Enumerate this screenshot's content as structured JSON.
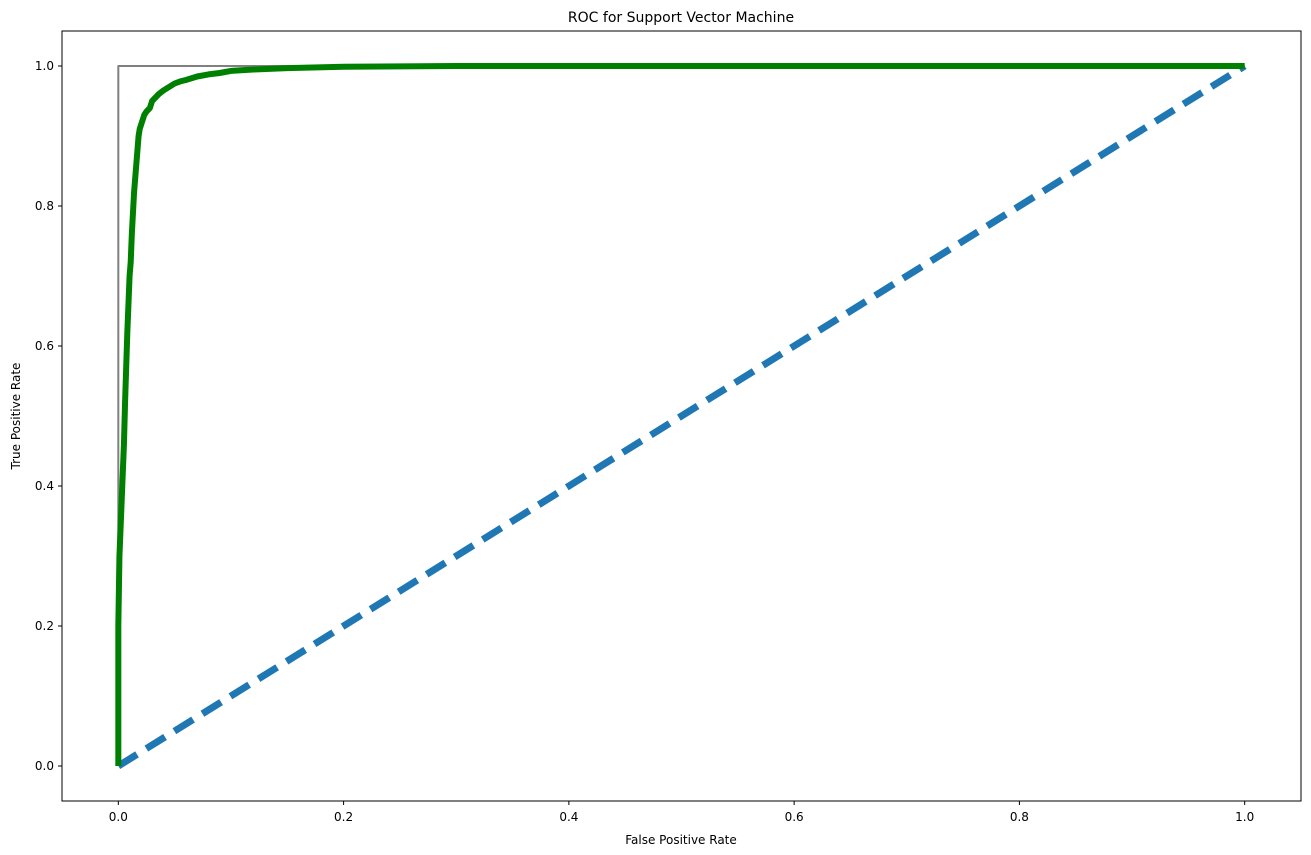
{
  "chart_data": {
    "type": "line",
    "title": "ROC for Support Vector Machine",
    "xlabel": "False Positive Rate",
    "ylabel": "True Positive Rate",
    "xlim": [
      -0.05,
      1.05
    ],
    "ylim": [
      -0.05,
      1.05
    ],
    "xticks": [
      0.0,
      0.2,
      0.4,
      0.6,
      0.8,
      1.0
    ],
    "xtick_labels": [
      "0.0",
      "0.2",
      "0.4",
      "0.6",
      "0.8",
      "1.0"
    ],
    "yticks": [
      0.0,
      0.2,
      0.4,
      0.6,
      0.8,
      1.0
    ],
    "ytick_labels": [
      "0.0",
      "0.2",
      "0.4",
      "0.6",
      "0.8",
      "1.0"
    ],
    "grid": false,
    "legend": false,
    "series": [
      {
        "color": "#808080",
        "style": "solid",
        "x": [
          0.0,
          0.0,
          1.0
        ],
        "y": [
          0.0,
          1.0,
          1.0
        ]
      },
      {
        "color": "#1f77b4",
        "style": "dashed",
        "x": [
          0.0,
          1.0
        ],
        "y": [
          0.0,
          1.0
        ]
      },
      {
        "color": "#008000",
        "style": "solid",
        "x": [
          0.0,
          0.0,
          0.001,
          0.002,
          0.003,
          0.004,
          0.005,
          0.006,
          0.007,
          0.008,
          0.009,
          0.01,
          0.011,
          0.012,
          0.014,
          0.016,
          0.017,
          0.018,
          0.019,
          0.021,
          0.023,
          0.025,
          0.028,
          0.03,
          0.033,
          0.036,
          0.04,
          0.045,
          0.05,
          0.055,
          0.06,
          0.07,
          0.08,
          0.09,
          0.1,
          0.12,
          0.15,
          0.2,
          0.3,
          0.5,
          1.0
        ],
        "y": [
          0.0,
          0.2,
          0.3,
          0.34,
          0.38,
          0.42,
          0.46,
          0.52,
          0.57,
          0.62,
          0.66,
          0.7,
          0.72,
          0.76,
          0.82,
          0.86,
          0.88,
          0.9,
          0.91,
          0.92,
          0.93,
          0.935,
          0.94,
          0.95,
          0.955,
          0.96,
          0.965,
          0.97,
          0.975,
          0.978,
          0.98,
          0.985,
          0.988,
          0.99,
          0.993,
          0.995,
          0.997,
          0.999,
          1.0,
          1.0,
          1.0
        ]
      }
    ]
  }
}
